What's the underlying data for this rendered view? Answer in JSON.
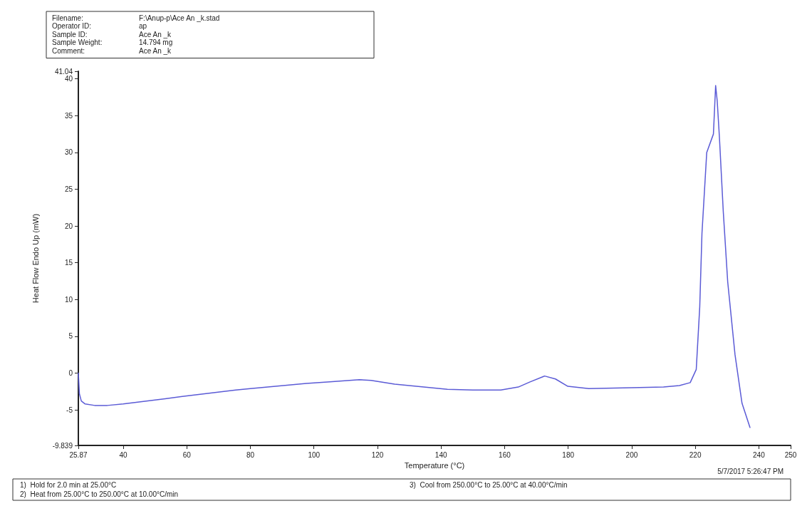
{
  "chart_data": {
    "type": "line",
    "xlabel": "Temperature (°C)",
    "ylabel": "Heat Flow Endo Up (mW)",
    "annotations": [
      "Filename:",
      "F:\\Anup-p\\Ace An _k.stad",
      "Operator ID:",
      "ap",
      "Sample ID:",
      "Ace An _k",
      "Sample Weight:",
      "14.794 mg",
      "Comment:",
      "Ace An _k",
      "1)  Hold for 2.0 min at 25.00°C",
      "2)  Heat from 25.00°C to 250.00°C at 10.00°C/min",
      "3)  Cool from 250.00°C to 25.00°C at 40.00°C/min",
      "5/7/2017 5:26:47 PM"
    ],
    "xlim": [
      25.87,
      250
    ],
    "xticks": [
      25.87,
      40,
      60,
      80,
      100,
      120,
      140,
      160,
      180,
      200,
      220,
      240,
      250
    ],
    "ylim": [
      -9.839,
      41.04
    ],
    "yticks": [
      -9.839,
      -5,
      0,
      5,
      10,
      15,
      20,
      25,
      30,
      35,
      40,
      41.04
    ],
    "grid": false,
    "legend": false,
    "marker": "none",
    "line_style": "solid",
    "series": [
      {
        "color": "#5b5bd6",
        "x": [
          25.87,
          26.2,
          26.8,
          28,
          31,
          35,
          40,
          53.2,
          60,
          75.4,
          80,
          97.6,
          105,
          114.3,
          118,
          125.4,
          142,
          150,
          158.8,
          164.3,
          168,
          172.6,
          176,
          179.9,
          186.5,
          200,
          210,
          215,
          218.4,
          220.3,
          221.4,
          222.1,
          223.6,
          225.7,
          226.4,
          226.9,
          227.6,
          228.8,
          230.2,
          232.5,
          234.7,
          237.2
        ],
        "values": [
          0,
          -2.8,
          -3.8,
          -4.2,
          -4.4,
          -4.4,
          -4.2,
          -3.5,
          -3.1,
          -2.3,
          -2.1,
          -1.4,
          -1.2,
          -0.9,
          -1.0,
          -1.5,
          -2.2,
          -2.3,
          -2.3,
          -1.9,
          -1.2,
          -0.4,
          -0.8,
          -1.8,
          -2.1,
          -2.0,
          -1.9,
          -1.7,
          -1.3,
          0.5,
          9,
          19,
          30,
          32.5,
          39.1,
          37,
          32,
          22,
          12.4,
          2.5,
          -4.1,
          -7.4
        ]
      }
    ]
  }
}
